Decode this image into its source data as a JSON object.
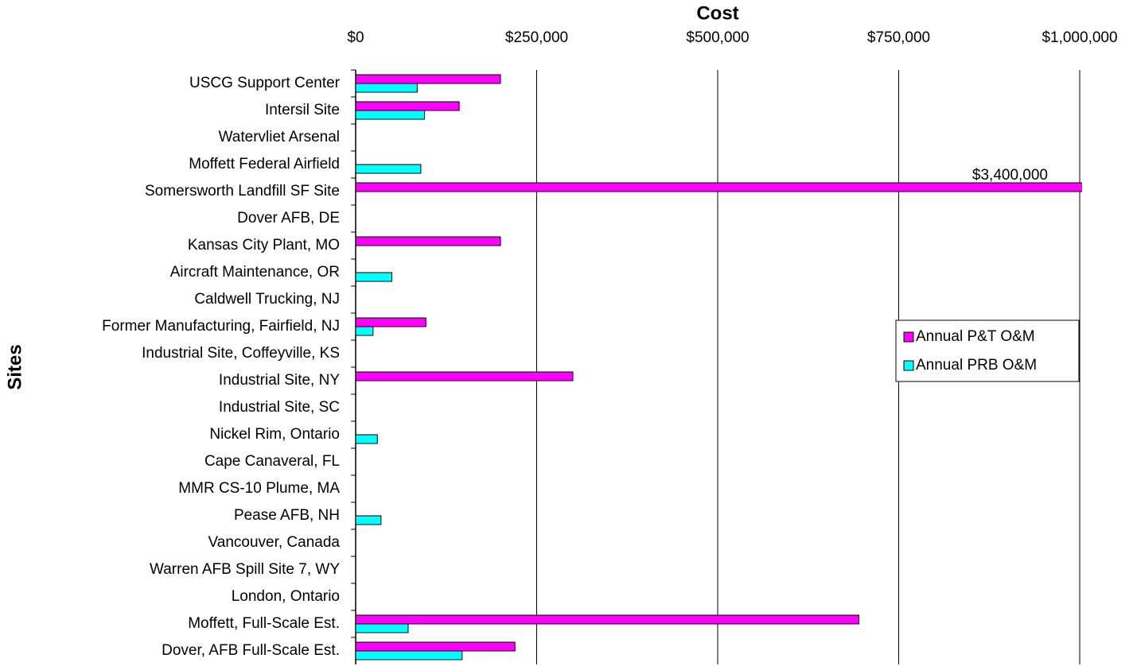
{
  "chart_data": {
    "type": "hbar",
    "title": "Cost",
    "y_label": "Sites",
    "categories": [
      "USCG Support Center",
      "Intersil Site",
      "Watervliet Arsenal",
      "Moffett Federal Airfield",
      "Somersworth Landfill SF Site",
      "Dover AFB, DE",
      "Kansas City Plant, MO",
      "Aircraft Maintenance, OR",
      "Caldwell Trucking, NJ",
      "Former Manufacturing, Fairfield, NJ",
      "Industrial Site, Coffeyville, KS",
      "Industrial Site, NY",
      "Industrial Site, SC",
      "Nickel Rim, Ontario",
      "Cape Canaveral, FL",
      "MMR CS-10 Plume, MA",
      "Pease AFB, NH",
      "Vancouver, Canada",
      "Warren AFB Spill Site 7, WY",
      "London, Ontario",
      "Moffett, Full-Scale Est.",
      "Dover, AFB Full-Scale Est."
    ],
    "series": [
      {
        "name": "Annual P&T O&M",
        "color": "#ff00ff",
        "values": [
          200000,
          143000,
          null,
          null,
          3400000,
          null,
          200000,
          null,
          null,
          97000,
          null,
          300000,
          null,
          null,
          null,
          null,
          null,
          null,
          null,
          null,
          695000,
          220000
        ],
        "value_labels": [
          null,
          null,
          null,
          null,
          "$3,400,000",
          null,
          null,
          null,
          null,
          null,
          null,
          null,
          null,
          null,
          null,
          null,
          null,
          null,
          null,
          null,
          null,
          null
        ]
      },
      {
        "name": "Annual PRB O&M",
        "color": "#00ffff",
        "values": [
          85000,
          95000,
          null,
          90000,
          null,
          null,
          null,
          50000,
          null,
          24000,
          null,
          null,
          null,
          30000,
          null,
          null,
          35000,
          null,
          null,
          null,
          72500,
          147000
        ]
      }
    ],
    "xlim": [
      0,
      1000000
    ],
    "xticks": [
      {
        "value": 0,
        "label": "$0"
      },
      {
        "value": 250000,
        "label": "$250,000"
      },
      {
        "value": 500000,
        "label": "$500,000"
      },
      {
        "value": 750000,
        "label": "$750,000"
      },
      {
        "value": 1000000,
        "label": "$1,000,000"
      }
    ],
    "grid": true,
    "legend": "right"
  }
}
